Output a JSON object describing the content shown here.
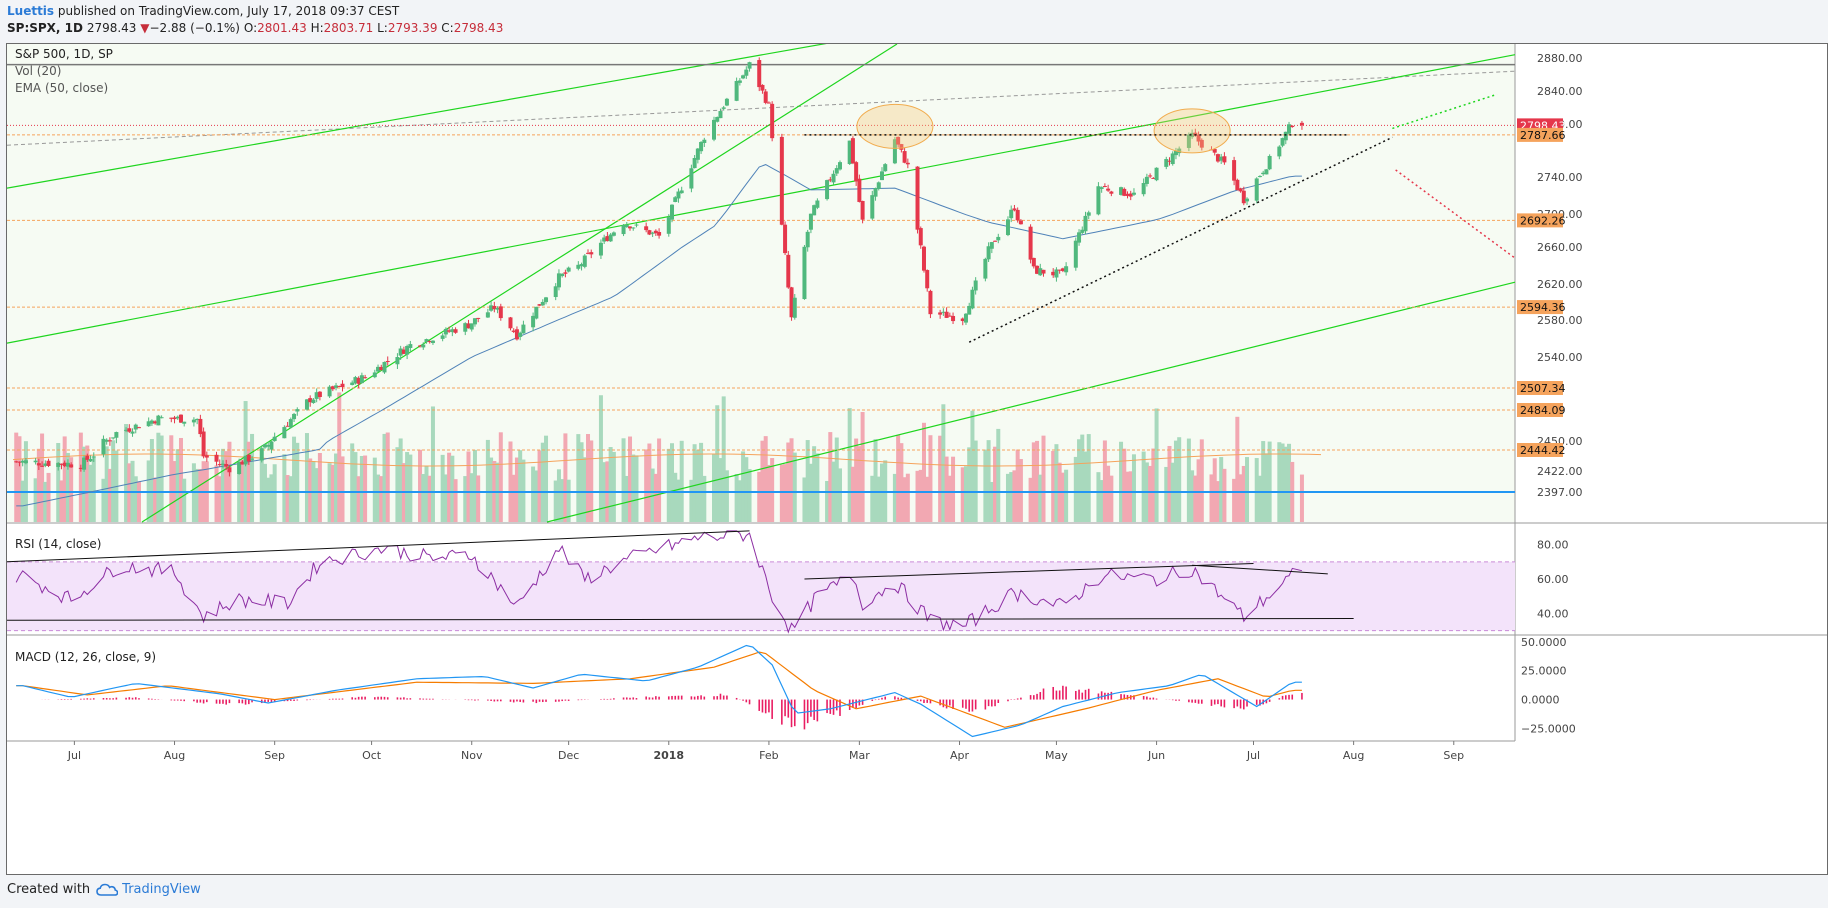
{
  "header": {
    "author": "Luettis",
    "published_text": " published on TradingView.com, July 17, 2018 09:37 CEST",
    "symbol": "SP:SPX, 1D",
    "last": "2798.43",
    "change_arrow": "▼",
    "change": "−2.88 (−0.1%)",
    "o_label": "O:",
    "o_value": "2801.43",
    "h_label": "H:",
    "h_value": "2803.71",
    "l_label": "L:",
    "l_value": "2793.39",
    "c_label": "C:",
    "c_value": "2798.43"
  },
  "footer": {
    "created_with": "Created with",
    "brand": "TradingView",
    "brand_icon": "tradingview-cloud-icon"
  },
  "colors": {
    "up": "#50b87d",
    "down": "#e5374b",
    "volume_up": "#a8d9bd",
    "volume_down": "#f2a8b2",
    "ema": "#4f82b8",
    "channel": "#1ed51e",
    "support": "#f5a35c",
    "rsi": "#8c2ea3",
    "rsi_band": "#f3e3fa",
    "macd": "#2196f3",
    "signal": "#f57c00",
    "hist": "#e91e63",
    "price_line": "#e5374b",
    "ellipse": "#f1ac4f"
  },
  "chart_data": [
    {
      "type": "candlestick",
      "title": "S&P 500, 1D, SP",
      "indicators": [
        "Vol (20)",
        "EMA (50, close)"
      ],
      "ylim": [
        2370,
        2895
      ],
      "x_ticks": [
        "Jul",
        "Aug",
        "Sep",
        "Oct",
        "Nov",
        "Dec",
        "2018",
        "Feb",
        "Mar",
        "Apr",
        "May",
        "Jun",
        "Jul",
        "Aug",
        "Sep"
      ],
      "y_ticks": [
        2880,
        2840,
        2800,
        2740,
        2700,
        2660,
        2620,
        2580,
        2540,
        2450,
        2422,
        2397
      ],
      "price_labels": [
        {
          "value": 2798.43,
          "text": "2798.43",
          "color": "#e5374b"
        },
        {
          "value": 2787.66,
          "text": "2787.66",
          "color": "#f5a35c"
        },
        {
          "value": 2692.26,
          "text": "2692.26",
          "color": "#f5a35c"
        },
        {
          "value": 2594.36,
          "text": "2594.36",
          "color": "#f5a35c"
        },
        {
          "value": 2507.34,
          "text": "2507.34",
          "color": "#f5a35c"
        },
        {
          "value": 2484.09,
          "text": "2484.09",
          "color": "#f5a35c"
        },
        {
          "value": 2444.42,
          "text": "2444.42",
          "color": "#f5a35c"
        }
      ],
      "series": [
        {
          "name": "S&P 500",
          "close_path": [
            [
              "2017-06-15",
              2432
            ],
            [
              "2017-07-03",
              2429
            ],
            [
              "2017-07-14",
              2459
            ],
            [
              "2017-07-27",
              2475
            ],
            [
              "2017-08-08",
              2474
            ],
            [
              "2017-08-10",
              2438
            ],
            [
              "2017-08-18",
              2425
            ],
            [
              "2017-08-29",
              2444
            ],
            [
              "2017-09-12",
              2496
            ],
            [
              "2017-09-29",
              2519
            ],
            [
              "2017-10-13",
              2553
            ],
            [
              "2017-10-31",
              2575
            ],
            [
              "2017-11-08",
              2594
            ],
            [
              "2017-11-15",
              2564
            ],
            [
              "2017-11-28",
              2627
            ],
            [
              "2017-12-04",
              2639
            ],
            [
              "2017-12-18",
              2690
            ],
            [
              "2017-12-29",
              2673
            ],
            [
              "2018-01-12",
              2786
            ],
            [
              "2018-01-26",
              2872
            ],
            [
              "2018-02-01",
              2822
            ],
            [
              "2018-02-08",
              2581
            ],
            [
              "2018-02-14",
              2698
            ],
            [
              "2018-02-26",
              2780
            ],
            [
              "2018-03-02",
              2691
            ],
            [
              "2018-03-12",
              2783
            ],
            [
              "2018-03-16",
              2752
            ],
            [
              "2018-03-23",
              2588
            ],
            [
              "2018-04-02",
              2582
            ],
            [
              "2018-04-10",
              2656
            ],
            [
              "2018-04-18",
              2708
            ],
            [
              "2018-04-24",
              2635
            ],
            [
              "2018-05-03",
              2630
            ],
            [
              "2018-05-14",
              2730
            ],
            [
              "2018-05-25",
              2721
            ],
            [
              "2018-06-12",
              2787
            ],
            [
              "2018-06-22",
              2755
            ],
            [
              "2018-06-28",
              2716
            ],
            [
              "2018-07-06",
              2759
            ],
            [
              "2018-07-13",
              2801
            ]
          ]
        },
        {
          "name": "EMA (50, close)",
          "values": [
            [
              "2017-06-15",
              2380
            ],
            [
              "2017-08-01",
              2418
            ],
            [
              "2017-09-15",
              2445
            ],
            [
              "2017-11-01",
              2540
            ],
            [
              "2017-12-15",
              2606
            ],
            [
              "2018-01-15",
              2685
            ],
            [
              "2018-01-30",
              2756
            ],
            [
              "2018-02-14",
              2726
            ],
            [
              "2018-03-12",
              2728
            ],
            [
              "2018-04-10",
              2690
            ],
            [
              "2018-05-03",
              2670
            ],
            [
              "2018-06-01",
              2693
            ],
            [
              "2018-06-25",
              2725
            ],
            [
              "2018-07-13",
              2741
            ]
          ]
        }
      ],
      "resistance_ellipses": [
        [
          "2018-03-12",
          2795
        ],
        [
          "2018-06-12",
          2790
        ]
      ]
    },
    {
      "type": "line",
      "title": "RSI (14, close)",
      "ylim": [
        28,
        92
      ],
      "y_ticks": [
        80,
        60,
        40
      ],
      "band": [
        30,
        70
      ],
      "series": [
        {
          "name": "RSI",
          "values": [
            [
              "2017-06-15",
              62
            ],
            [
              "2017-06-30",
              48
            ],
            [
              "2017-07-15",
              68
            ],
            [
              "2017-08-01",
              64
            ],
            [
              "2017-08-10",
              38
            ],
            [
              "2017-08-20",
              48
            ],
            [
              "2017-09-05",
              46
            ],
            [
              "2017-09-15",
              70
            ],
            [
              "2017-10-05",
              78
            ],
            [
              "2017-10-20",
              72
            ],
            [
              "2017-11-01",
              74
            ],
            [
              "2017-11-15",
              44
            ],
            [
              "2017-11-28",
              78
            ],
            [
              "2017-12-06",
              60
            ],
            [
              "2017-12-20",
              72
            ],
            [
              "2018-01-10",
              84
            ],
            [
              "2018-01-26",
              86
            ],
            [
              "2018-02-02",
              50
            ],
            [
              "2018-02-08",
              30
            ],
            [
              "2018-02-16",
              50
            ],
            [
              "2018-02-27",
              62
            ],
            [
              "2018-03-02",
              46
            ],
            [
              "2018-03-12",
              58
            ],
            [
              "2018-03-23",
              36
            ],
            [
              "2018-04-02",
              32
            ],
            [
              "2018-04-18",
              52
            ],
            [
              "2018-05-03",
              44
            ],
            [
              "2018-05-15",
              62
            ],
            [
              "2018-06-01",
              60
            ],
            [
              "2018-06-12",
              66
            ],
            [
              "2018-06-28",
              38
            ],
            [
              "2018-07-13",
              62
            ]
          ]
        }
      ]
    },
    {
      "type": "line",
      "title": "MACD (12, 26, close, 9)",
      "ylim": [
        -35,
        55
      ],
      "y_ticks": [
        "50.0000",
        "25.0000",
        "0.0000",
        "−25.0000"
      ],
      "y_tick_values": [
        50,
        25,
        0,
        -25
      ],
      "series": [
        {
          "name": "MACD",
          "values": [
            [
              "2017-06-15",
              12
            ],
            [
              "2017-06-30",
              2
            ],
            [
              "2017-07-20",
              14
            ],
            [
              "2017-08-15",
              5
            ],
            [
              "2017-08-30",
              -3
            ],
            [
              "2017-09-20",
              8
            ],
            [
              "2017-10-15",
              18
            ],
            [
              "2017-11-05",
              20
            ],
            [
              "2017-11-20",
              10
            ],
            [
              "2017-12-05",
              22
            ],
            [
              "2017-12-25",
              16
            ],
            [
              "2018-01-10",
              28
            ],
            [
              "2018-01-26",
              48
            ],
            [
              "2018-02-02",
              30
            ],
            [
              "2018-02-09",
              -12
            ],
            [
              "2018-02-20",
              -8
            ],
            [
              "2018-03-12",
              6
            ],
            [
              "2018-03-20",
              -4
            ],
            [
              "2018-04-05",
              -32
            ],
            [
              "2018-04-20",
              -22
            ],
            [
              "2018-05-03",
              -6
            ],
            [
              "2018-05-20",
              6
            ],
            [
              "2018-06-05",
              12
            ],
            [
              "2018-06-15",
              22
            ],
            [
              "2018-07-02",
              -6
            ],
            [
              "2018-07-13",
              15
            ]
          ]
        },
        {
          "name": "Signal",
          "values": [
            [
              "2017-06-15",
              12
            ],
            [
              "2017-07-05",
              4
            ],
            [
              "2017-07-30",
              12
            ],
            [
              "2017-09-01",
              0
            ],
            [
              "2017-10-15",
              15
            ],
            [
              "2017-11-20",
              14
            ],
            [
              "2017-12-20",
              18
            ],
            [
              "2018-01-15",
              28
            ],
            [
              "2018-01-30",
              42
            ],
            [
              "2018-02-15",
              8
            ],
            [
              "2018-02-28",
              -8
            ],
            [
              "2018-03-20",
              3
            ],
            [
              "2018-04-15",
              -24
            ],
            [
              "2018-05-10",
              -8
            ],
            [
              "2018-06-01",
              8
            ],
            [
              "2018-06-20",
              18
            ],
            [
              "2018-07-05",
              2
            ],
            [
              "2018-07-13",
              8
            ]
          ]
        },
        {
          "name": "Histogram",
          "values": [
            [
              "2017-06-20",
              0
            ],
            [
              "2017-07-20",
              2
            ],
            [
              "2017-08-18",
              -5
            ],
            [
              "2017-10-01",
              3
            ],
            [
              "2017-11-20",
              -3
            ],
            [
              "2017-12-20",
              2
            ],
            [
              "2018-01-20",
              5
            ],
            [
              "2018-02-10",
              -28
            ],
            [
              "2018-03-10",
              4
            ],
            [
              "2018-04-05",
              -12
            ],
            [
              "2018-04-30",
              12
            ],
            [
              "2018-05-20",
              6
            ],
            [
              "2018-06-30",
              -10
            ],
            [
              "2018-07-13",
              7
            ]
          ]
        }
      ]
    }
  ]
}
